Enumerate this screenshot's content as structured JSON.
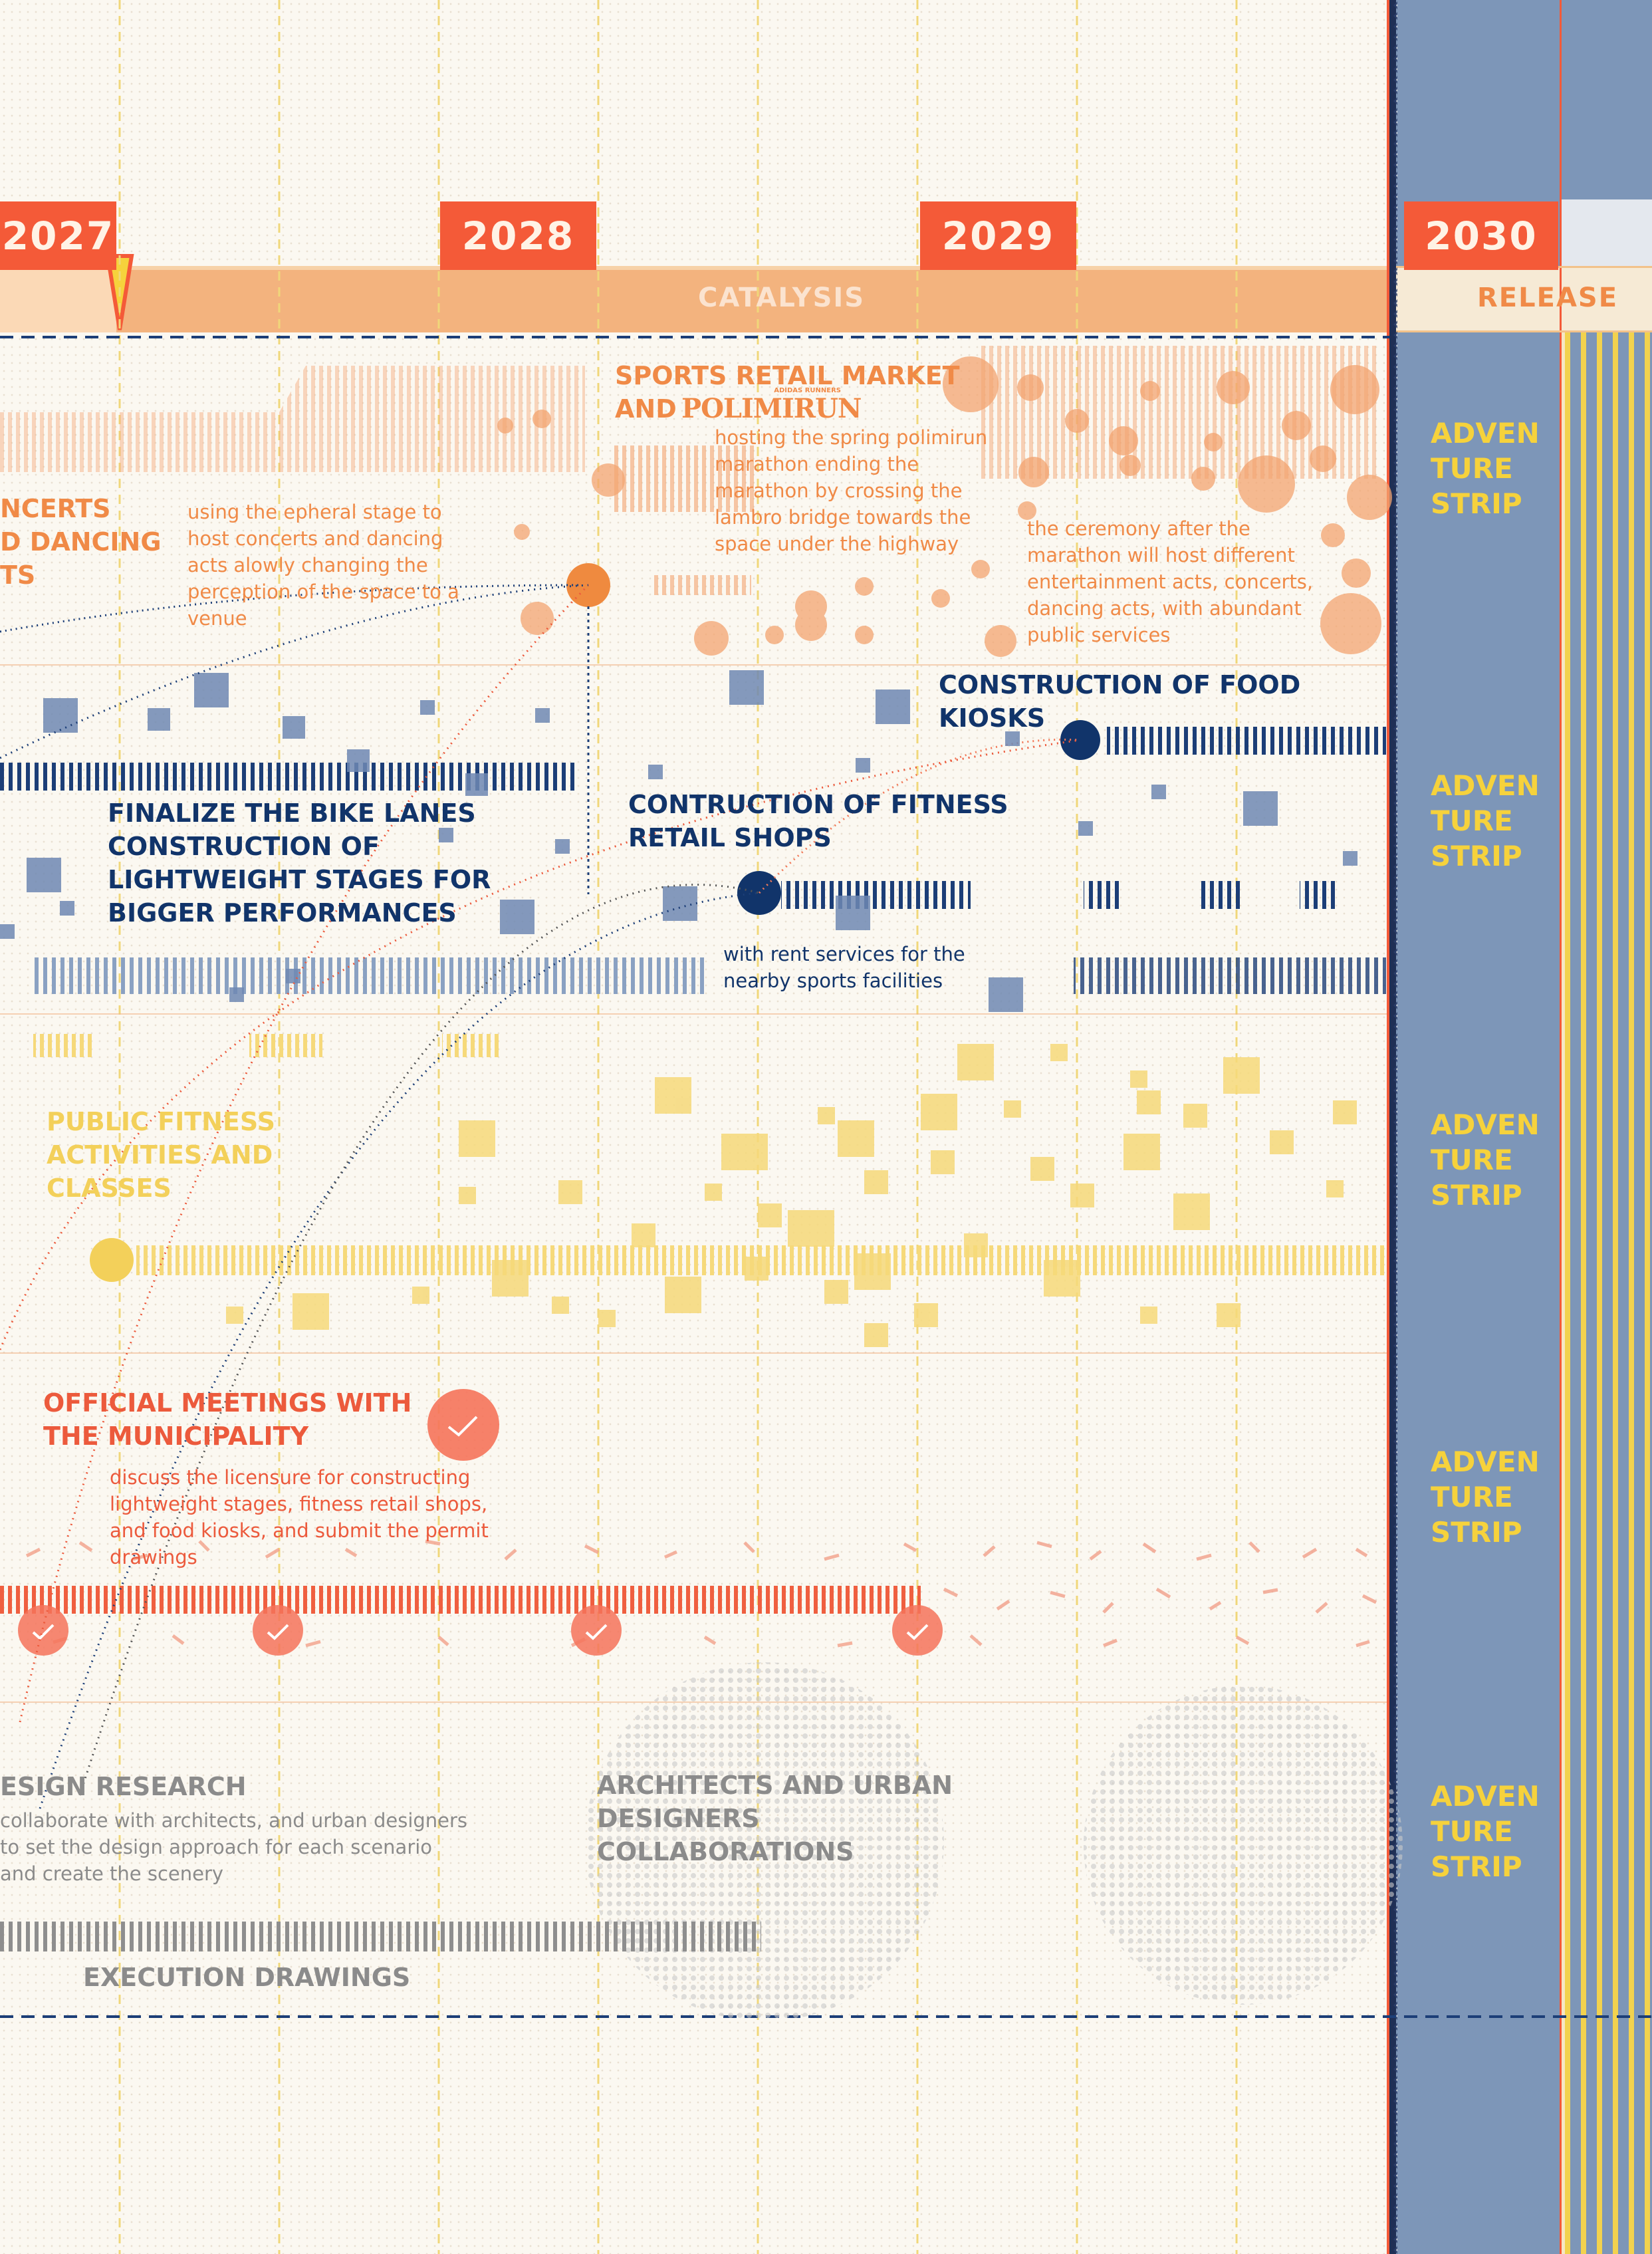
{
  "years": [
    "2027",
    "2028",
    "2029",
    "2030"
  ],
  "phases": {
    "catalysis": "CATALYSIS",
    "release": "RELEASE"
  },
  "strip_label": {
    "l1": "ADVEN",
    "l2": "TURE",
    "l3": "STRIP"
  },
  "row1": {
    "concerts_cut": {
      "l1": "NCERTS",
      "l2": "D DANCING",
      "l3": "TS"
    },
    "ephemeral": "using the epheral stage to host concerts and dancing acts alowly changing the perception of the space to a venue",
    "market_title": {
      "l1": "SPORTS RETAIL MARKET",
      "l2": "AND"
    },
    "logo": {
      "text": "POLIMIRUN",
      "tag": "ADIDAS RUNNERS"
    },
    "marathon": "hosting the spring polimirun marathon ending the marathon by crossing the lambro bridge towards the space under the highway",
    "ceremony": "the ceremony after the marathon will host different entertainment acts, concerts, dancing acts, with abundant public services"
  },
  "row2": {
    "food_kiosks": "CONSTRUCTION OF FOOD KIOSKS",
    "bike": {
      "l1": "FINALIZE THE BIKE LANES",
      "l2": "CONSTRUCTION OF",
      "l3": "LIGHTWEIGHT STAGES FOR",
      "l4": "BIGGER PERFORMANCES"
    },
    "fitness_shops": {
      "l1": "CONTRUCTION OF FITNESS",
      "l2": "RETAIL SHOPS"
    },
    "rent": "with  rent services for the nearby sports facilities"
  },
  "row3": {
    "public_fitness": {
      "l1": "PUBLIC FITNESS",
      "l2": "ACTIVITIES AND",
      "l3": "CLASSES"
    }
  },
  "row4": {
    "meetings": {
      "l1": "OFFICIAL MEETINGS WITH",
      "l2": "THE MUNICIPALITY"
    },
    "licensure": "discuss the licensure for constructing lightweight stages, fitness retail shops, and food kiosks, and submit the permit drawings"
  },
  "row5": {
    "research_title": "ESIGN RESEARCH",
    "research_body": "collaborate with architects, and urban designers to set the design approach for each scenario and create the scenery",
    "architects": {
      "l1": "ARCHITECTS AND URBAN",
      "l2": "DESIGNERS COLLABORATIONS"
    },
    "execution": "EXECUTION DRAWINGS"
  },
  "colors": {
    "navy": "#11346a",
    "orange": "#f08a47",
    "red": "#ec5a3c",
    "yellow": "#f3d05a",
    "steel": "#7d96b8"
  }
}
